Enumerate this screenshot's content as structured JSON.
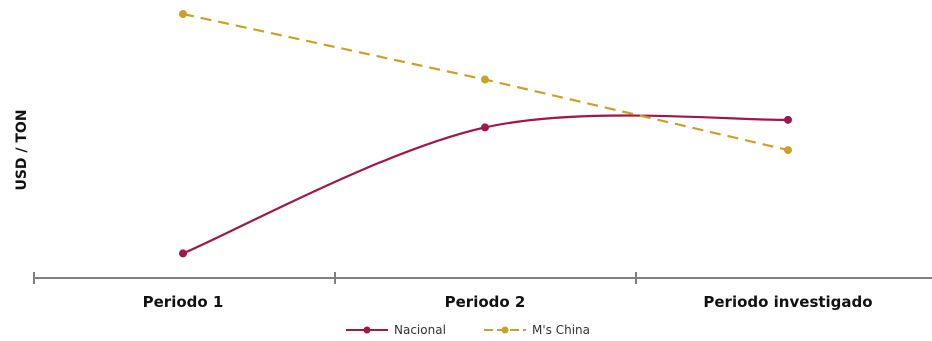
{
  "chart_data": {
    "type": "line",
    "ylabel": "USD / TON",
    "xlabel": "",
    "categories": [
      "Periodo 1",
      "Periodo 2",
      "Periodo investigado"
    ],
    "ylim": [
      0,
      100
    ],
    "y_axis_ticks_shown": false,
    "grid": false,
    "legend_position": "bottom-center",
    "series": [
      {
        "name": "Nacional",
        "values": [
          5,
          55,
          58
        ],
        "color": "#a0174e",
        "dash": "solid",
        "curve": "smooth"
      },
      {
        "name": "M's China",
        "values": [
          100,
          74,
          46
        ],
        "color": "#c9a227",
        "dash": "dashed",
        "curve": "straight"
      }
    ]
  }
}
